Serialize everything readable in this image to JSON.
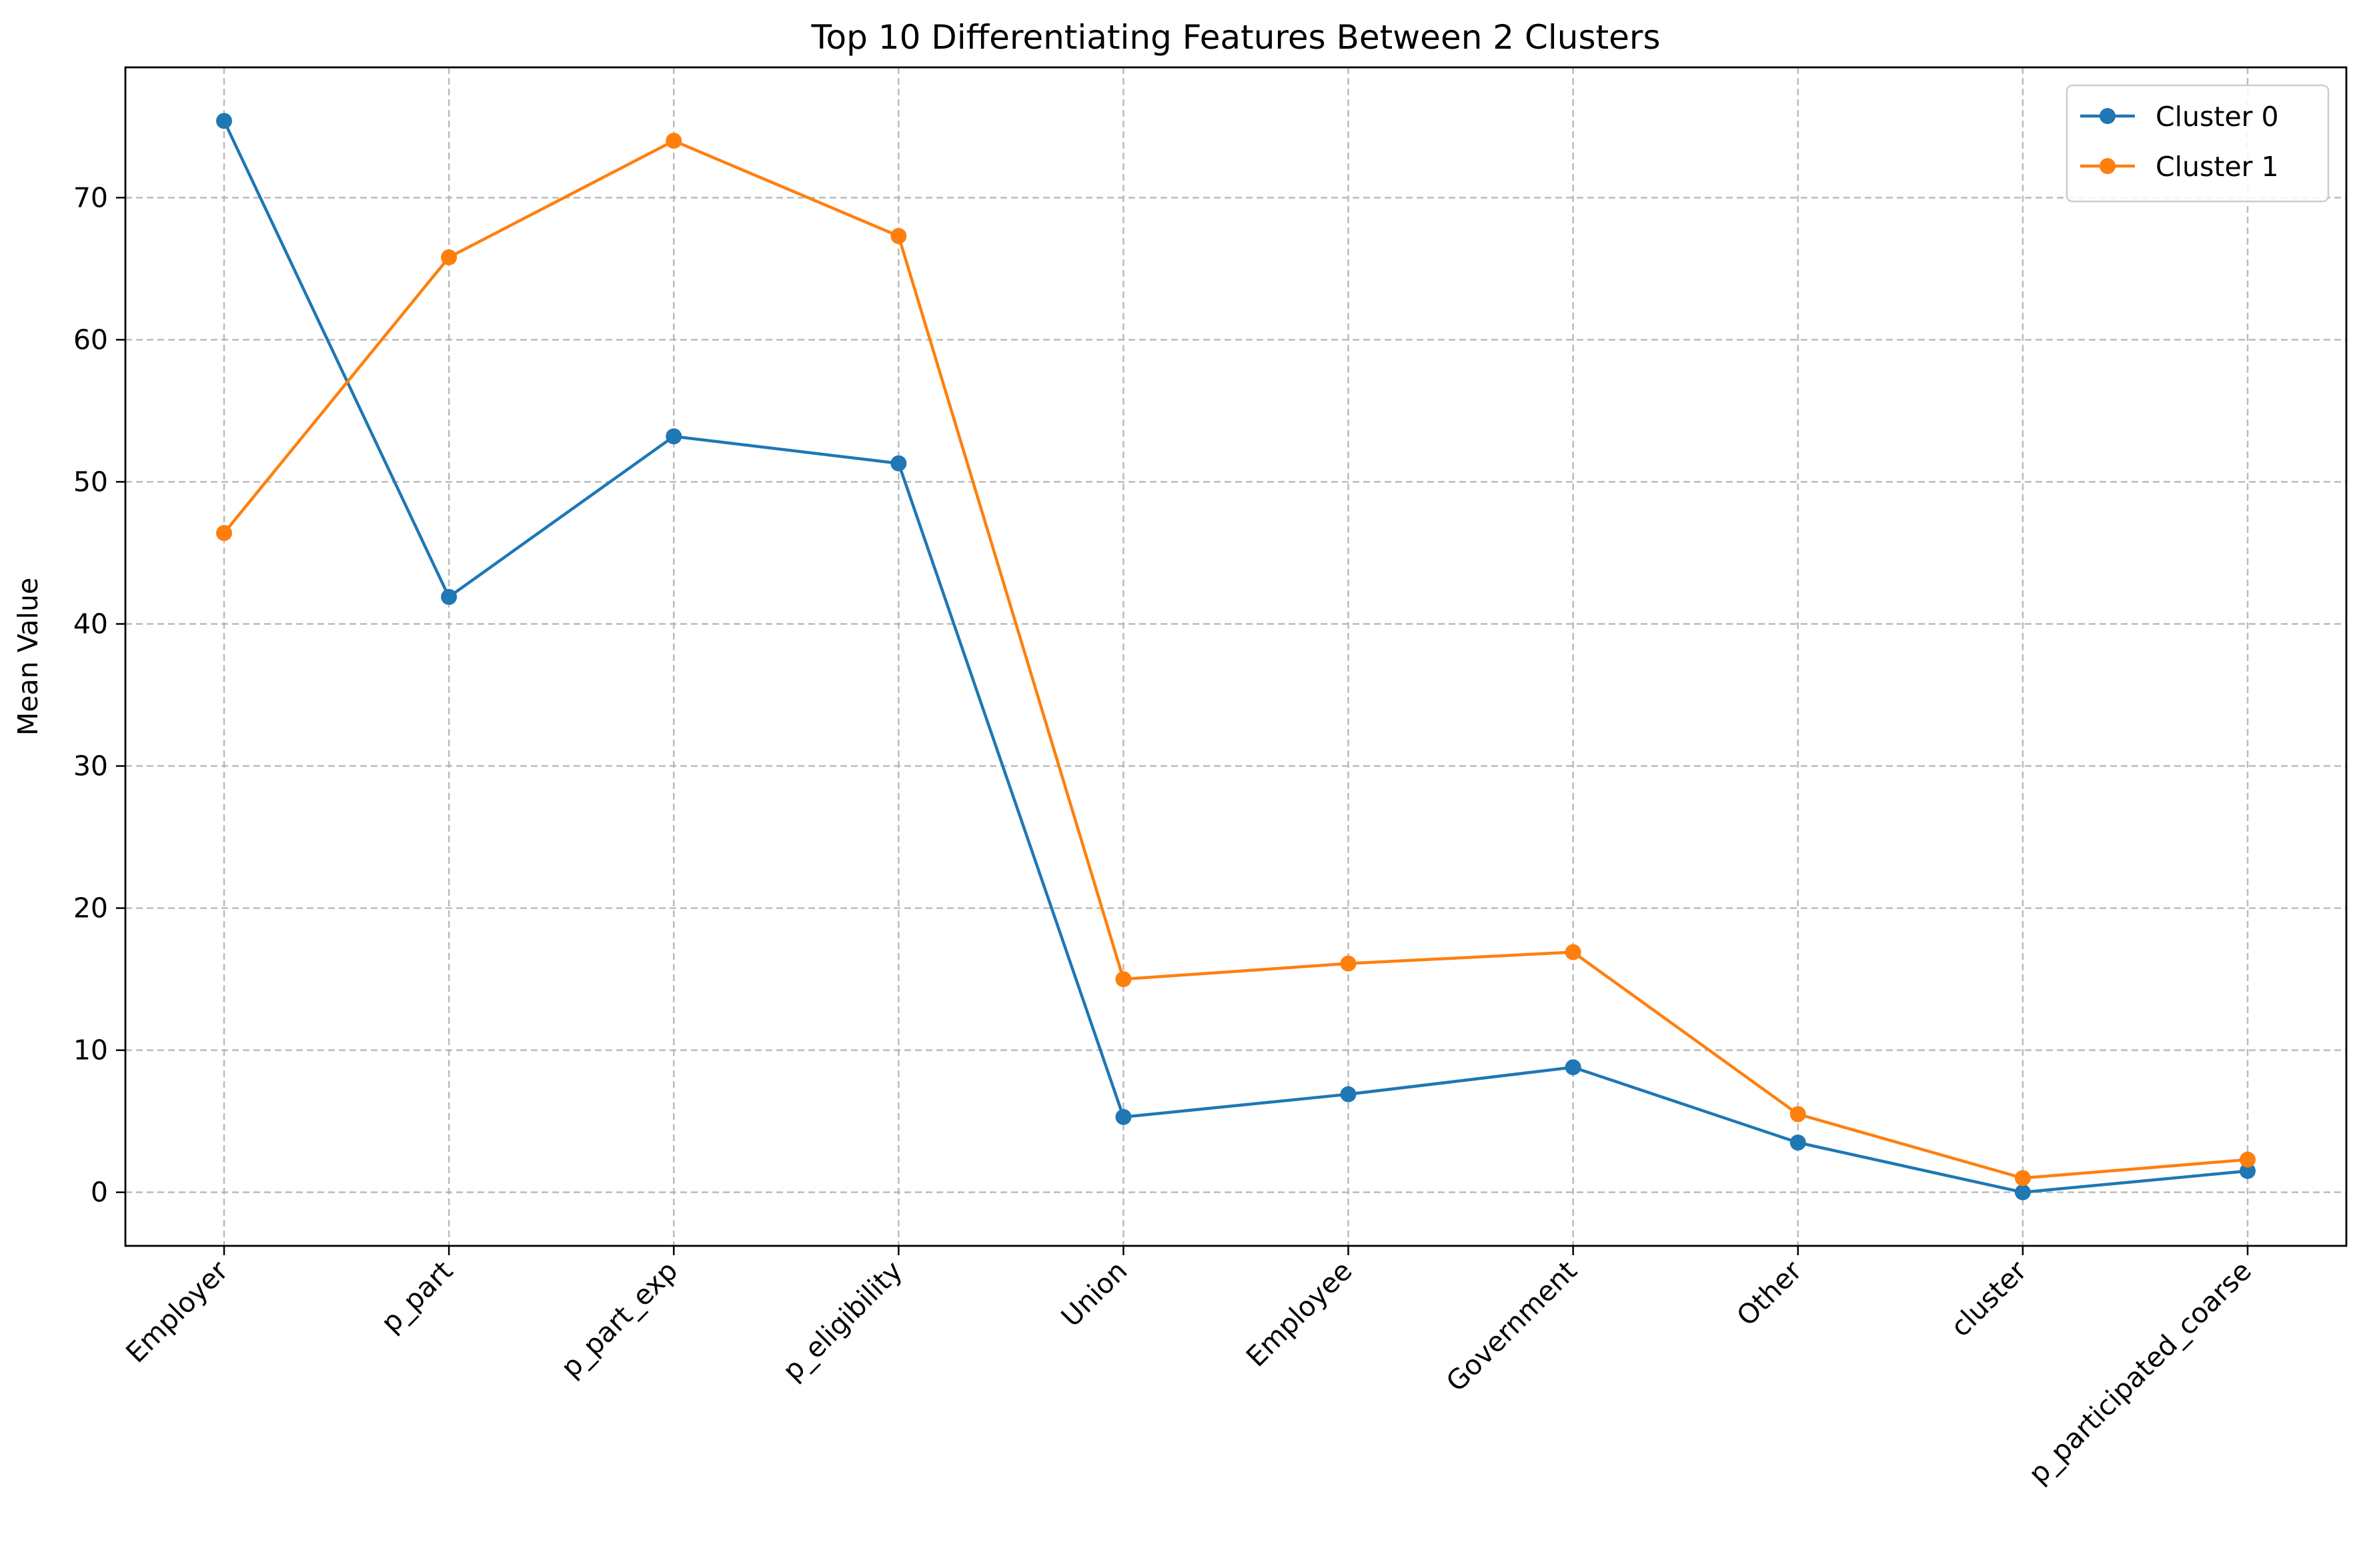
{
  "chart_data": {
    "type": "line",
    "title": "Top 10 Differentiating Features Between 2 Clusters",
    "xlabel": "",
    "ylabel": "Mean Value",
    "categories": [
      "Employer",
      "p_part",
      "p_part_exp",
      "p_eligibility",
      "Union",
      "Employee",
      "Government",
      "Other",
      "cluster",
      "p_participated_coarse"
    ],
    "series": [
      {
        "name": "Cluster 0",
        "color": "#1f77b4",
        "values": [
          75.4,
          41.9,
          53.2,
          51.3,
          5.3,
          6.9,
          8.8,
          3.5,
          0.0,
          1.5
        ]
      },
      {
        "name": "Cluster 1",
        "color": "#ff7f0e",
        "values": [
          46.4,
          65.8,
          74.0,
          67.3,
          15.0,
          16.1,
          16.9,
          5.5,
          1.0,
          2.3
        ]
      }
    ],
    "ylim": [
      -3.77,
      79.17
    ],
    "yticks": [
      0,
      10,
      20,
      30,
      40,
      50,
      60,
      70
    ],
    "grid": true,
    "legend_position": "top-right",
    "marker": "circle"
  }
}
